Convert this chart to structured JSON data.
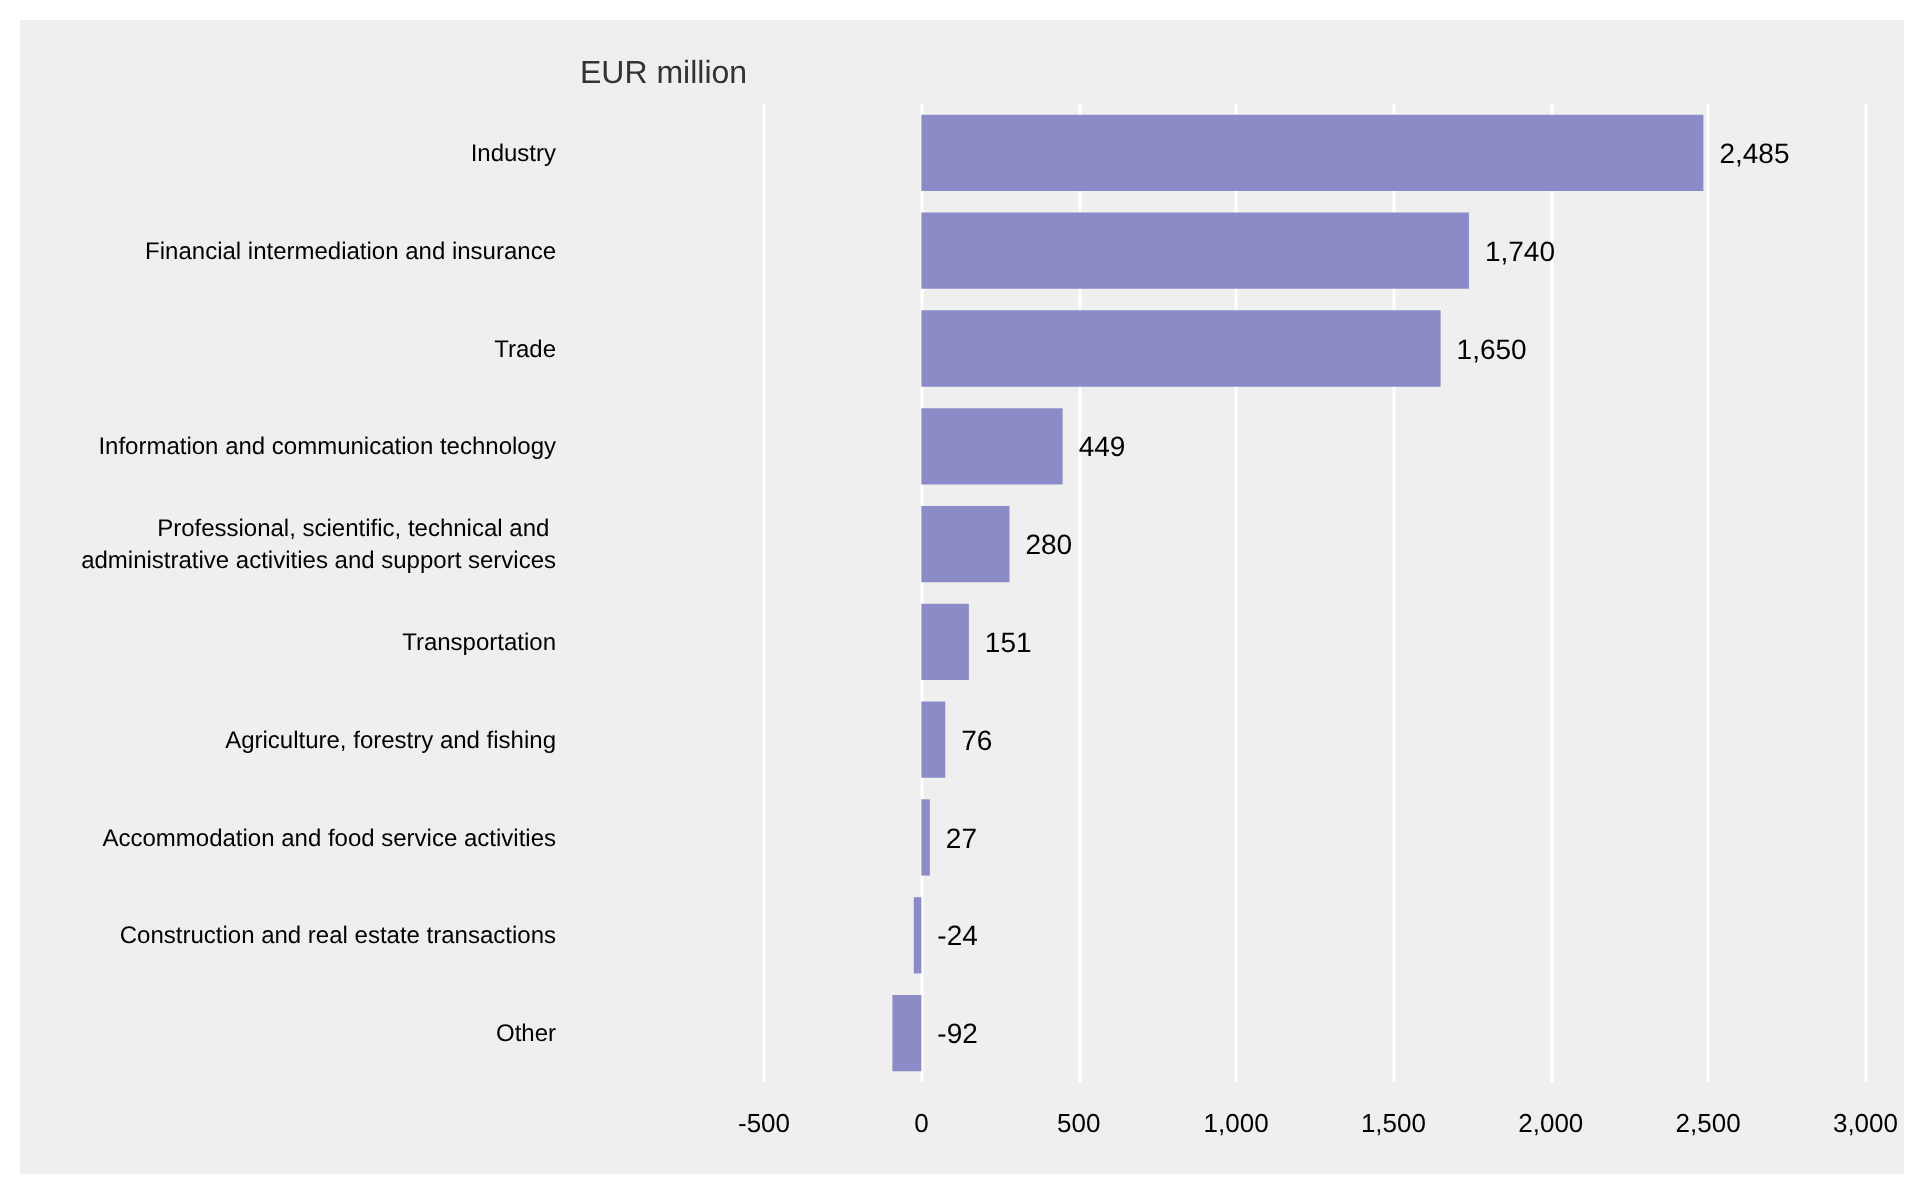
{
  "chart_data": {
    "type": "bar",
    "orientation": "horizontal",
    "xlabel": "EUR million",
    "categories": [
      "Industry",
      "Financial intermediation and insurance",
      "Trade",
      "Information and communication technology",
      "Professional, scientific, technical and administrative activities and support services",
      "Transportation",
      "Agriculture, forestry and fishing",
      "Accommodation and food service activities",
      "Construction and real estate transactions",
      "Other"
    ],
    "values": [
      2485,
      1740,
      1650,
      449,
      280,
      151,
      76,
      27,
      -24,
      -92
    ],
    "value_labels": [
      "2,485",
      "1,740",
      "1,650",
      "449",
      "280",
      "151",
      "76",
      "27",
      "-24",
      "-92"
    ],
    "color": "#8b8cc7",
    "grid": "x",
    "xlim": [
      -500,
      3000
    ],
    "xticks": [
      {
        "value": -500,
        "label": "-500"
      },
      0,
      500,
      {
        "value": 1000,
        "label": "1,000"
      },
      {
        "value": 1500,
        "label": "1,500"
      },
      {
        "value": 2000,
        "label": "2,000"
      },
      {
        "value": 2500,
        "label": "2,500"
      },
      {
        "value": 3000,
        "label": "3,000"
      }
    ]
  }
}
